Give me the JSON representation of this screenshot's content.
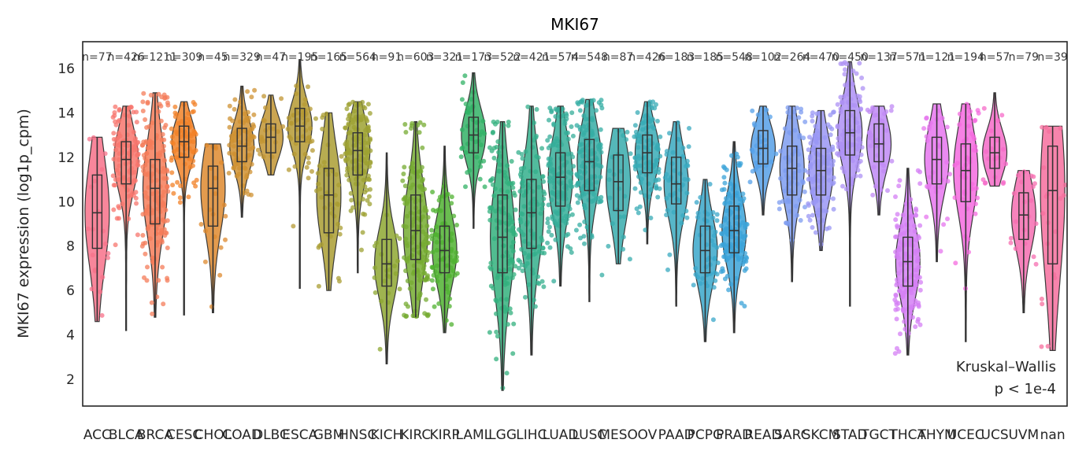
{
  "chart_data": {
    "type": "violin",
    "title": "MKI67",
    "ylabel": "MKI67 expression (log1p_cpm)",
    "xlabel": "",
    "ylim": [
      0.8,
      17.2
    ],
    "yticks": [
      2,
      4,
      6,
      8,
      10,
      12,
      14,
      16
    ],
    "grid": false,
    "legend": "none",
    "annotation": [
      "Kruskal–Wallis",
      "p < 1e-4"
    ],
    "categories": [
      "ACC",
      "BLCA",
      "BRCA",
      "CESC",
      "CHOL",
      "COAD",
      "DLBC",
      "ESCA",
      "GBM",
      "HNSC",
      "KICH",
      "KIRC",
      "KIRP",
      "LAML",
      "LGG",
      "LIHC",
      "LUAD",
      "LUSC",
      "MESO",
      "OV",
      "PAAD",
      "PCPG",
      "PRAD",
      "READ",
      "SARC",
      "SKCM",
      "STAD",
      "TGCT",
      "THCA",
      "THYM",
      "UCEC",
      "UCS",
      "UVM",
      "nan"
    ],
    "n_labels": [
      "n=77",
      "n=426",
      "n=1211",
      "n=309",
      "n=45",
      "n=329",
      "n=47",
      "n=195",
      "n=165",
      "n=564",
      "n=91",
      "n=603",
      "n=321",
      "n=173",
      "n=522",
      "n=421",
      "n=574",
      "n=548",
      "n=87",
      "n=426",
      "n=183",
      "n=185",
      "n=548",
      "n=102",
      "n=264",
      "n=470",
      "n=450",
      "n=137",
      "n=571",
      "n=121",
      "n=194",
      "n=57",
      "n=79",
      "n=39"
    ],
    "series": [
      {
        "category": "ACC",
        "min": 4.6,
        "q1": 7.9,
        "median": 9.5,
        "q3": 11.2,
        "max": 12.9,
        "color": "#f77189"
      },
      {
        "category": "BLCA",
        "min": 4.2,
        "q1": 10.8,
        "median": 11.9,
        "q3": 12.7,
        "max": 14.3,
        "color": "#f7766d"
      },
      {
        "category": "BRCA",
        "min": 4.8,
        "q1": 9.0,
        "median": 10.6,
        "q3": 11.9,
        "max": 14.9,
        "color": "#f47c59"
      },
      {
        "category": "CESC",
        "min": 4.9,
        "q1": 12.0,
        "median": 12.7,
        "q3": 13.4,
        "max": 14.5,
        "color": "#f18228"
      },
      {
        "category": "CHOL",
        "min": 5.0,
        "q1": 8.9,
        "median": 10.6,
        "q3": 11.6,
        "max": 12.6,
        "color": "#de8a2f"
      },
      {
        "category": "COAD",
        "min": 9.3,
        "q1": 11.8,
        "median": 12.5,
        "q3": 13.3,
        "max": 15.2,
        "color": "#cf9131"
      },
      {
        "category": "DLBC",
        "min": 11.2,
        "q1": 12.2,
        "median": 12.9,
        "q3": 13.5,
        "max": 14.8,
        "color": "#c29533"
      },
      {
        "category": "ESCA",
        "min": 6.1,
        "q1": 12.7,
        "median": 13.4,
        "q3": 14.2,
        "max": 16.4,
        "color": "#b59a33"
      },
      {
        "category": "GBM",
        "min": 6.0,
        "q1": 8.6,
        "median": 10.3,
        "q3": 11.5,
        "max": 14.0,
        "color": "#aa9d33"
      },
      {
        "category": "HNSC",
        "min": 6.8,
        "q1": 11.2,
        "median": 12.3,
        "q3": 13.1,
        "max": 14.5,
        "color": "#9ea233"
      },
      {
        "category": "KICH",
        "min": 2.7,
        "q1": 6.2,
        "median": 7.2,
        "q3": 8.3,
        "max": 12.2,
        "color": "#8ea731"
      },
      {
        "category": "KIRC",
        "min": 4.8,
        "q1": 7.4,
        "median": 8.7,
        "q3": 10.3,
        "max": 13.6,
        "color": "#76ab31"
      },
      {
        "category": "KIRP",
        "min": 4.1,
        "q1": 6.8,
        "median": 7.8,
        "q3": 8.9,
        "max": 12.5,
        "color": "#50b131"
      },
      {
        "category": "LAML",
        "min": 8.8,
        "q1": 12.2,
        "median": 13.0,
        "q3": 13.8,
        "max": 15.8,
        "color": "#32b166"
      },
      {
        "category": "LGG",
        "min": 1.5,
        "q1": 6.8,
        "median": 8.4,
        "q3": 10.3,
        "max": 13.6,
        "color": "#33b07d"
      },
      {
        "category": "LIHC",
        "min": 3.1,
        "q1": 7.9,
        "median": 9.5,
        "q3": 11.0,
        "max": 14.3,
        "color": "#34af8c"
      },
      {
        "category": "LUAD",
        "min": 6.2,
        "q1": 9.8,
        "median": 11.1,
        "q3": 12.2,
        "max": 14.3,
        "color": "#35ae99"
      },
      {
        "category": "LUSC",
        "min": 5.5,
        "q1": 10.5,
        "median": 11.8,
        "q3": 12.8,
        "max": 14.6,
        "color": "#36ada4"
      },
      {
        "category": "MESO",
        "min": 7.2,
        "q1": 9.6,
        "median": 10.9,
        "q3": 12.1,
        "max": 13.3,
        "color": "#37acad"
      },
      {
        "category": "OV",
        "min": 8.1,
        "q1": 11.3,
        "median": 12.2,
        "q3": 13.0,
        "max": 14.5,
        "color": "#38abb6"
      },
      {
        "category": "PAAD",
        "min": 5.3,
        "q1": 9.9,
        "median": 10.8,
        "q3": 12.0,
        "max": 13.6,
        "color": "#39a9c0"
      },
      {
        "category": "PCPG",
        "min": 3.7,
        "q1": 6.8,
        "median": 7.8,
        "q3": 8.9,
        "max": 11.0,
        "color": "#3aa7ca"
      },
      {
        "category": "PRAD",
        "min": 4.1,
        "q1": 7.7,
        "median": 8.7,
        "q3": 9.8,
        "max": 12.7,
        "color": "#3ba3d8"
      },
      {
        "category": "READ",
        "min": 9.4,
        "q1": 11.7,
        "median": 12.4,
        "q3": 13.2,
        "max": 14.3,
        "color": "#56a0e8"
      },
      {
        "category": "SARC",
        "min": 6.4,
        "q1": 10.3,
        "median": 11.5,
        "q3": 12.5,
        "max": 14.3,
        "color": "#7e9cf0"
      },
      {
        "category": "SKCM",
        "min": 7.8,
        "q1": 10.3,
        "median": 11.4,
        "q3": 12.4,
        "max": 14.1,
        "color": "#9a97f4"
      },
      {
        "category": "STAD",
        "min": 5.3,
        "q1": 12.1,
        "median": 13.1,
        "q3": 14.1,
        "max": 16.3,
        "color": "#ae91f4"
      },
      {
        "category": "TGCT",
        "min": 9.4,
        "q1": 11.8,
        "median": 12.6,
        "q3": 13.5,
        "max": 14.3,
        "color": "#c08af4"
      },
      {
        "category": "THCA",
        "min": 3.1,
        "q1": 6.2,
        "median": 7.3,
        "q3": 8.4,
        "max": 11.5,
        "color": "#d47ff4"
      },
      {
        "category": "THYM",
        "min": 7.3,
        "q1": 10.8,
        "median": 11.9,
        "q3": 12.9,
        "max": 14.4,
        "color": "#e675ee"
      },
      {
        "category": "UCEC",
        "min": 3.7,
        "q1": 10.0,
        "median": 11.4,
        "q3": 12.6,
        "max": 14.4,
        "color": "#f46bdf"
      },
      {
        "category": "UCS",
        "min": 10.7,
        "q1": 11.5,
        "median": 12.2,
        "q3": 12.9,
        "max": 14.9,
        "color": "#f56bc8"
      },
      {
        "category": "UVM",
        "min": 5.0,
        "q1": 8.3,
        "median": 9.4,
        "q3": 10.4,
        "max": 11.4,
        "color": "#f56db0"
      },
      {
        "category": "nan",
        "min": 3.3,
        "q1": 7.2,
        "median": 10.5,
        "q3": 12.5,
        "max": 13.4,
        "color": "#f66f9d"
      }
    ]
  }
}
